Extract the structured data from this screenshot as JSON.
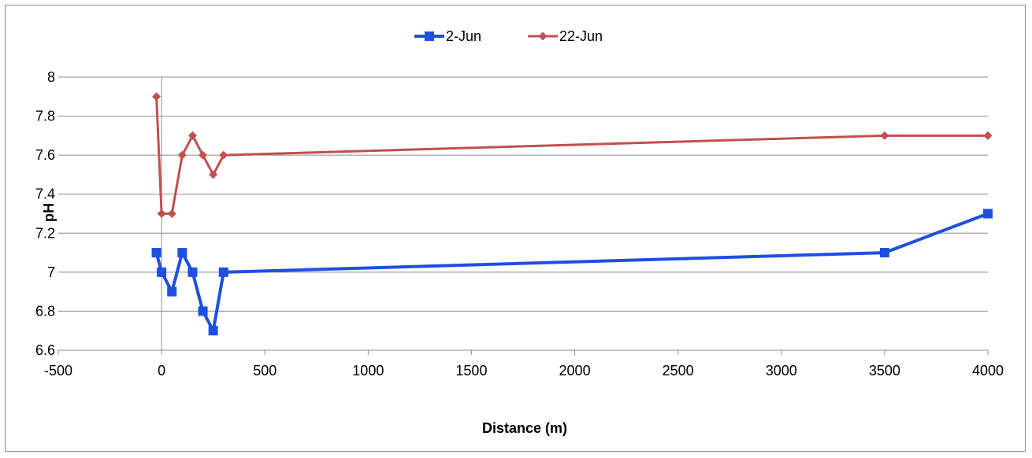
{
  "chart_data": {
    "type": "line",
    "title": "",
    "xlabel": "Distance (m)",
    "ylabel": "pH",
    "xlim": [
      -500,
      4000
    ],
    "ylim": [
      6.6,
      8
    ],
    "xticks": [
      "-500",
      "0",
      "500",
      "1000",
      "1500",
      "2000",
      "2500",
      "3000",
      "3500",
      "4000"
    ],
    "yticks": [
      "6.6",
      "6.8",
      "7",
      "7.2",
      "7.4",
      "7.6",
      "7.8",
      "8"
    ],
    "grid": "horizontal",
    "legend_position": "top",
    "series": [
      {
        "name": "2-Jun",
        "color": "#1f4fe0",
        "marker": "square",
        "points": [
          [
            -25,
            7.1
          ],
          [
            0,
            7.0
          ],
          [
            50,
            6.9
          ],
          [
            100,
            7.1
          ],
          [
            150,
            7.0
          ],
          [
            200,
            6.8
          ],
          [
            250,
            6.7
          ],
          [
            300,
            7.0
          ],
          [
            3500,
            7.1
          ],
          [
            4000,
            7.3
          ]
        ]
      },
      {
        "name": "22-Jun",
        "color": "#c0504d",
        "marker": "diamond",
        "points": [
          [
            -25,
            7.9
          ],
          [
            0,
            7.3
          ],
          [
            50,
            7.3
          ],
          [
            100,
            7.6
          ],
          [
            150,
            7.7
          ],
          [
            200,
            7.6
          ],
          [
            250,
            7.5
          ],
          [
            300,
            7.6
          ],
          [
            3500,
            7.7
          ],
          [
            4000,
            7.7
          ]
        ]
      }
    ]
  }
}
